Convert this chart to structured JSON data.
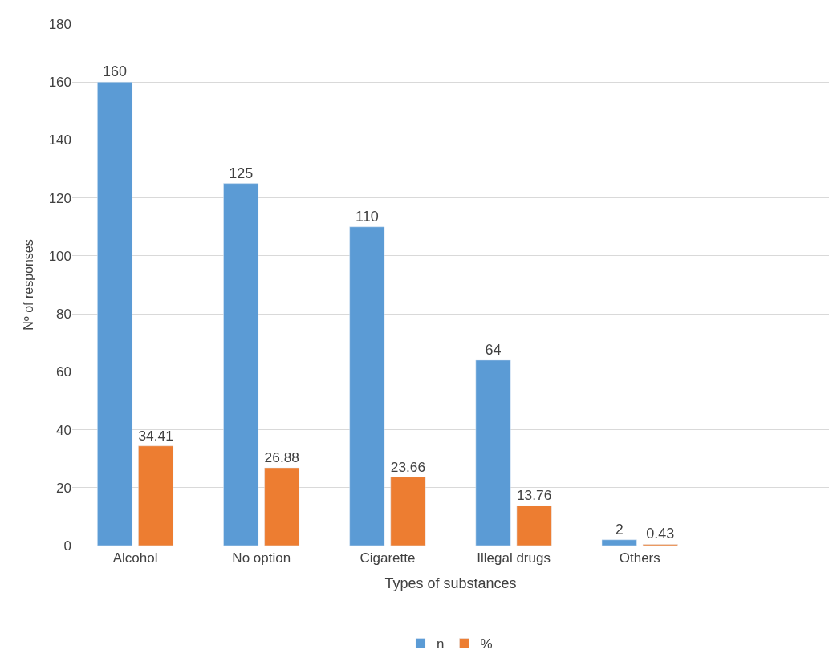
{
  "chart_data": {
    "type": "bar",
    "xlabel": "Types of substances",
    "ylabel": "Nº of responses",
    "categories": [
      "Alcohol",
      "No option",
      "Cigarette",
      "Illegal drugs",
      "Others",
      null
    ],
    "series": [
      {
        "name": "n",
        "color": "#5b9bd5",
        "values": [
          160,
          125,
          110,
          64,
          2,
          null
        ]
      },
      {
        "name": "%",
        "color": "#ed7d31",
        "values": [
          34.41,
          26.88,
          23.66,
          13.76,
          0.43,
          null
        ]
      }
    ],
    "ylim": [
      0,
      180
    ],
    "yticks": [
      0,
      20,
      40,
      60,
      80,
      100,
      120,
      140,
      160,
      180
    ],
    "grid": "y",
    "legend": "bottom",
    "data_labels": true
  }
}
